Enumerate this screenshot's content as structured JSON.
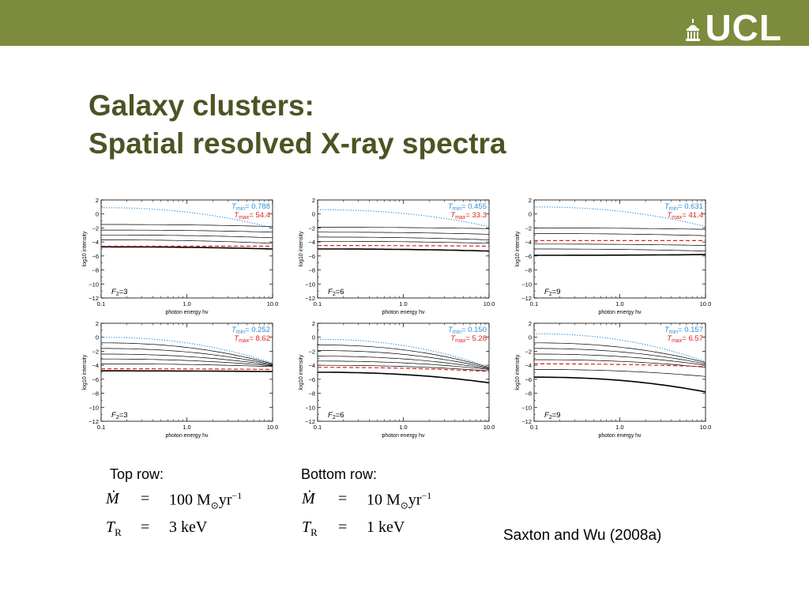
{
  "header": {
    "logo_text": "UCL"
  },
  "title": {
    "line1": "Galaxy clusters:",
    "line2": "Spatial resolved X-ray spectra"
  },
  "captions": {
    "top": "Top row:",
    "bottom": "Bottom row:"
  },
  "equations": {
    "top": {
      "mdot_sym": "Ṁ",
      "eq": "=",
      "mdot_val": "100 M",
      "mdot_unit": "yr",
      "mdot_exp": "−1",
      "tr_sym": "T",
      "tr_sub": "R",
      "tr_val": "3 keV"
    },
    "bottom": {
      "mdot_sym": "Ṁ",
      "eq": "=",
      "mdot_val": "10 M",
      "mdot_unit": "yr",
      "mdot_exp": "−1",
      "tr_sym": "T",
      "tr_sub": "R",
      "tr_val": "1 keV"
    },
    "sun": "⊙"
  },
  "citation": "Saxton and Wu (2008a)",
  "colors": {
    "bar": "#7c8c3c",
    "title": "#4f5323",
    "tmin": "#2e8fd8",
    "tmax": "#e02020"
  },
  "chart_data": [
    {
      "type": "line",
      "panel": "top-1",
      "xlabel": "photon energy hν",
      "ylabel": "log10 intensity",
      "xscale": "log",
      "xlim": [
        0.1,
        10.0
      ],
      "ylim": [
        -12,
        2
      ],
      "xticks": [
        "0.1",
        "1.0",
        "10.0"
      ],
      "yticks": [
        "2",
        "0",
        "−2",
        "−4",
        "−6",
        "−8",
        "−10",
        "−12"
      ],
      "f2_label": "F2=3",
      "tmin_label": "Tmin",
      "tmin_value": "= 0.788",
      "tmax_label": "Tmax",
      "tmax_value": "= 54.4",
      "tmin_curve": [
        0.9,
        -2.0
      ],
      "tmax_curve": [
        -4.6,
        -4.6
      ],
      "curves": [
        [
          -1.5,
          -1.8
        ],
        [
          -2.3,
          -2.6
        ],
        [
          -3.0,
          -3.4
        ],
        [
          -3.7,
          -4.2
        ],
        [
          -4.7,
          -5.0
        ]
      ]
    },
    {
      "type": "line",
      "panel": "top-2",
      "xlabel": "photon energy hν",
      "ylabel": "log10 intensity",
      "xscale": "log",
      "xlim": [
        0.1,
        10.0
      ],
      "ylim": [
        -12,
        2
      ],
      "xticks": [
        "0.1",
        "1.0",
        "10.0"
      ],
      "yticks": [
        "2",
        "0",
        "−2",
        "−4",
        "−6",
        "−8",
        "−10",
        "−12"
      ],
      "f2_label": "F2=6",
      "tmin_label": "Tmin",
      "tmin_value": "= 0.455",
      "tmax_label": "Tmax",
      "tmax_value": "= 33.3",
      "tmin_curve": [
        0.6,
        -1.8
      ],
      "tmax_curve": [
        -4.5,
        -4.6
      ],
      "curves": [
        [
          -1.9,
          -2.1
        ],
        [
          -2.6,
          -2.9
        ],
        [
          -3.3,
          -3.7
        ],
        [
          -3.9,
          -4.2
        ],
        [
          -5.0,
          -5.3
        ]
      ]
    },
    {
      "type": "line",
      "panel": "top-3",
      "xlabel": "photon energy hν",
      "ylabel": "log10 intensity",
      "xscale": "log",
      "xlim": [
        0.1,
        10.0
      ],
      "ylim": [
        -12,
        2
      ],
      "xticks": [
        "0.1",
        "1.0",
        "10.0"
      ],
      "yticks": [
        "2",
        "0",
        "−2",
        "−4",
        "−6",
        "−8",
        "−10",
        "−12"
      ],
      "f2_label": "F2=9",
      "tmin_label": "Tmin",
      "tmin_value": "= 0.631",
      "tmax_label": "Tmax",
      "tmax_value": "= 41.4",
      "tmin_curve": [
        1.0,
        -1.8
      ],
      "tmax_curve": [
        -3.8,
        -3.8
      ],
      "curves": [
        [
          -2.0,
          -2.2
        ],
        [
          -2.8,
          -3.1
        ],
        [
          -4.3,
          -4.5
        ],
        [
          -5.0,
          -5.3
        ],
        [
          -5.9,
          -5.8
        ]
      ]
    },
    {
      "type": "line",
      "panel": "bottom-1",
      "xlabel": "photon energy hν",
      "ylabel": "log10 intensity",
      "xscale": "log",
      "xlim": [
        0.1,
        10.0
      ],
      "ylim": [
        -12,
        2
      ],
      "xticks": [
        "0.1",
        "1.0",
        "10.0"
      ],
      "yticks": [
        "2",
        "0",
        "−2",
        "−4",
        "−6",
        "−8",
        "−10",
        "−12"
      ],
      "f2_label": "F2=3",
      "tmin_label": "Tmin",
      "tmin_value": "= 0.252",
      "tmax_label": "Tmax",
      "tmax_value": "= 8.62",
      "tmin_curve": [
        0.0,
        -3.7
      ],
      "tmax_curve": [
        -4.5,
        -4.6
      ],
      "curves": [
        [
          -0.8,
          -3.8
        ],
        [
          -1.6,
          -3.9
        ],
        [
          -2.4,
          -4.0
        ],
        [
          -3.1,
          -4.1
        ],
        [
          -3.8,
          -4.2
        ],
        [
          -4.8,
          -4.9
        ]
      ]
    },
    {
      "type": "line",
      "panel": "bottom-2",
      "xlabel": "photon energy hν",
      "ylabel": "log10 intensity",
      "xscale": "log",
      "xlim": [
        0.1,
        10.0
      ],
      "ylim": [
        -12,
        2
      ],
      "xticks": [
        "0.1",
        "1.0",
        "10.0"
      ],
      "yticks": [
        "2",
        "0",
        "−2",
        "−4",
        "−6",
        "−8",
        "−10",
        "−12"
      ],
      "f2_label": "F2=6",
      "tmin_label": "Tmin",
      "tmin_value": "= 0.150",
      "tmax_label": "Tmax",
      "tmax_value": "= 5.28",
      "tmin_curve": [
        -0.3,
        -4.3
      ],
      "tmax_curve": [
        -4.3,
        -4.9
      ],
      "curves": [
        [
          -1.1,
          -4.3
        ],
        [
          -1.9,
          -4.4
        ],
        [
          -2.7,
          -4.5
        ],
        [
          -3.4,
          -4.6
        ],
        [
          -4.0,
          -4.8
        ],
        [
          -5.0,
          -6.5
        ]
      ]
    },
    {
      "type": "line",
      "panel": "bottom-3",
      "xlabel": "photon energy hν",
      "ylabel": "log10 intensity",
      "xscale": "log",
      "xlim": [
        0.1,
        10.0
      ],
      "ylim": [
        -12,
        2
      ],
      "xticks": [
        "0.1",
        "1.0",
        "10.0"
      ],
      "yticks": [
        "2",
        "0",
        "−2",
        "−4",
        "−6",
        "−8",
        "−10",
        "−12"
      ],
      "f2_label": "F2=9",
      "tmin_label": "Tmin",
      "tmin_value": "= 0.157",
      "tmax_label": "Tmax",
      "tmax_value": "= 6.57",
      "tmin_curve": [
        0.5,
        -3.5
      ],
      "tmax_curve": [
        -3.8,
        -4.2
      ],
      "curves": [
        [
          -0.8,
          -3.6
        ],
        [
          -1.6,
          -3.8
        ],
        [
          -2.4,
          -4.0
        ],
        [
          -3.2,
          -4.3
        ],
        [
          -4.6,
          -5.6
        ],
        [
          -5.7,
          -7.8
        ]
      ]
    }
  ]
}
